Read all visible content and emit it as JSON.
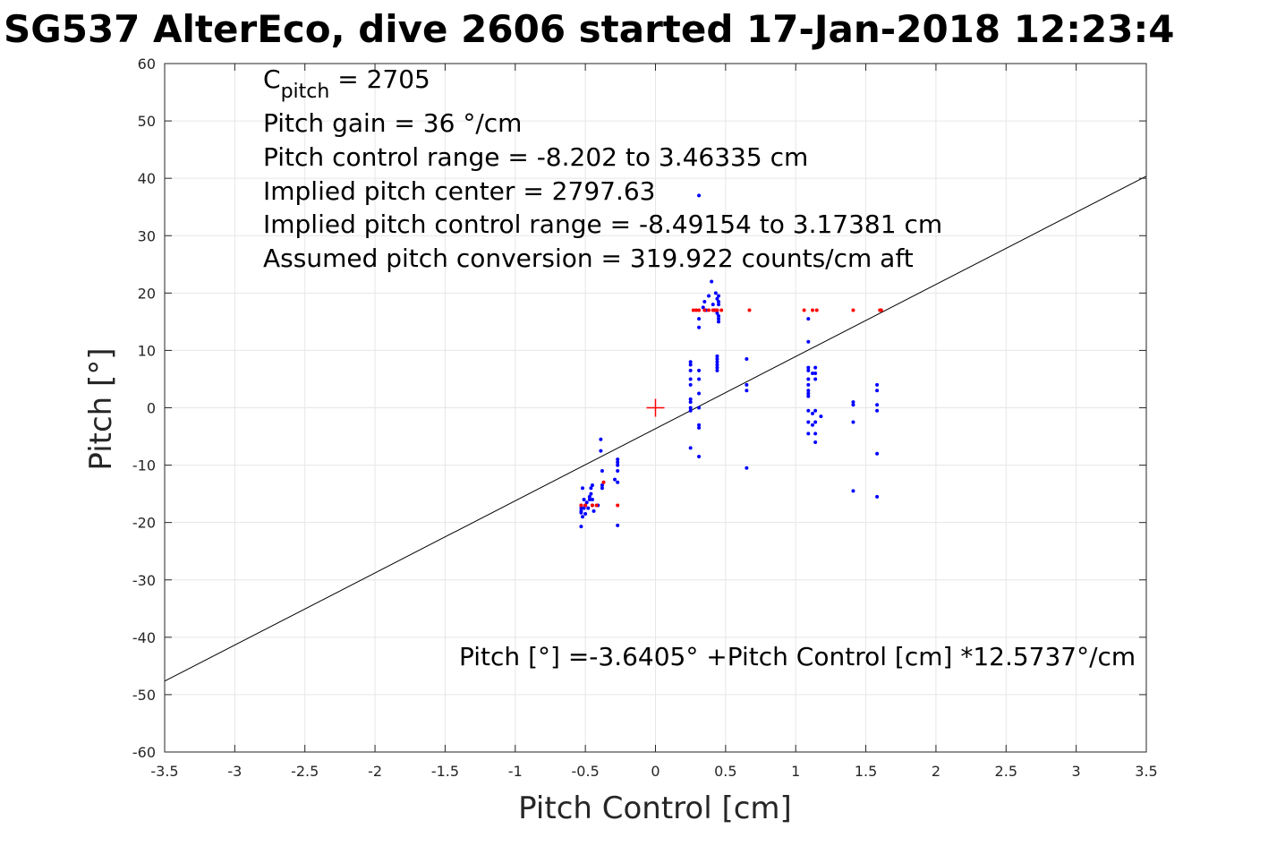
{
  "chart_data": {
    "type": "scatter",
    "title": "SG537 AlterEco, dive 2606 started 17-Jan-2018 12:23:4",
    "xlabel": "Pitch Control [cm]",
    "ylabel": "Pitch [°]",
    "xlim": [
      -3.5,
      3.5
    ],
    "ylim": [
      -60,
      60
    ],
    "xticks": [
      -3.5,
      -3,
      -2.5,
      -2,
      -1.5,
      -1,
      -0.5,
      0,
      0.5,
      1,
      1.5,
      2,
      2.5,
      3,
      3.5
    ],
    "xtick_labels": [
      "-3.5",
      "-3",
      "-2.5",
      "-2",
      "-1.5",
      "-1",
      "-0.5",
      "0",
      "0.5",
      "1",
      "1.5",
      "2",
      "2.5",
      "3",
      "3.5"
    ],
    "yticks": [
      -60,
      -50,
      -40,
      -30,
      -20,
      -10,
      0,
      10,
      20,
      30,
      40,
      50,
      60
    ],
    "ytick_labels": [
      "-60",
      "-50",
      "-40",
      "-30",
      "-20",
      "-10",
      "0",
      "10",
      "20",
      "30",
      "40",
      "50",
      "60"
    ],
    "grid": true,
    "colors": {
      "observed": "#0000ff",
      "flagged": "#ff0000",
      "fit": "#000000",
      "center_marker": "#ff0000",
      "grid": "#e6e6e6"
    },
    "annotations": {
      "c_pitch_base": "C",
      "c_pitch_sub": "pitch",
      "c_pitch_value": " = 2705",
      "line2": "Pitch gain = 36 °/cm",
      "line3": "Pitch control range = -8.202 to 3.46335 cm",
      "line4": "Implied pitch center = 2797.63",
      "line5": "Implied pitch control range = -8.49154 to 3.17381 cm",
      "line6": "Assumed pitch conversion = 319.922 counts/cm aft",
      "fit_equation": "Pitch [°] =-3.6405° +Pitch Control [cm] *12.5737°/cm"
    },
    "fit_line": {
      "intercept": -3.6405,
      "slope": 12.5737
    },
    "center_marker": {
      "x": 0,
      "y": 0
    },
    "series": [
      {
        "color": "#0000ff",
        "points": [
          [
            -0.53,
            -17
          ],
          [
            -0.53,
            -17.5
          ],
          [
            -0.53,
            -18
          ],
          [
            -0.53,
            -18.3
          ],
          [
            -0.52,
            -19
          ],
          [
            -0.53,
            -20.7
          ],
          [
            -0.52,
            -14
          ],
          [
            -0.51,
            -16
          ],
          [
            -0.51,
            -17.5
          ],
          [
            -0.5,
            -18.5
          ],
          [
            -0.5,
            -17
          ],
          [
            -0.49,
            -16.5
          ],
          [
            -0.48,
            -17.5
          ],
          [
            -0.47,
            -16
          ],
          [
            -0.47,
            -15.5
          ],
          [
            -0.46,
            -15
          ],
          [
            -0.46,
            -14
          ],
          [
            -0.45,
            -16
          ],
          [
            -0.45,
            -17
          ],
          [
            -0.44,
            -18
          ],
          [
            -0.45,
            -13.5
          ],
          [
            -0.41,
            -17
          ],
          [
            -0.39,
            -5.5
          ],
          [
            -0.39,
            -7.5
          ],
          [
            -0.38,
            -11
          ],
          [
            -0.38,
            -13.5
          ],
          [
            -0.38,
            -14
          ],
          [
            -0.29,
            -12.5
          ],
          [
            -0.27,
            -9
          ],
          [
            -0.27,
            -9.5
          ],
          [
            -0.27,
            -10
          ],
          [
            -0.27,
            -11
          ],
          [
            -0.27,
            -13
          ],
          [
            -0.27,
            -20.5
          ],
          [
            0.25,
            7.5
          ],
          [
            0.25,
            8
          ],
          [
            0.25,
            6.5
          ],
          [
            0.25,
            5
          ],
          [
            0.25,
            4
          ],
          [
            0.25,
            1
          ],
          [
            0.25,
            0
          ],
          [
            0.25,
            -0.5
          ],
          [
            0.25,
            -7
          ],
          [
            0.25,
            1.5
          ],
          [
            0.31,
            6.5
          ],
          [
            0.31,
            2.5
          ],
          [
            0.31,
            -3
          ],
          [
            0.31,
            -3.5
          ],
          [
            0.31,
            -8.5
          ],
          [
            0.31,
            5
          ],
          [
            0.31,
            0
          ],
          [
            0.31,
            14
          ],
          [
            0.31,
            15.5
          ],
          [
            0.31,
            37
          ],
          [
            0.34,
            17.5
          ],
          [
            0.35,
            18.5
          ],
          [
            0.36,
            17
          ],
          [
            0.38,
            19.5
          ],
          [
            0.4,
            22
          ],
          [
            0.41,
            18
          ],
          [
            0.42,
            17
          ],
          [
            0.43,
            20
          ],
          [
            0.44,
            16.5
          ],
          [
            0.44,
            19
          ],
          [
            0.45,
            18
          ],
          [
            0.45,
            16
          ],
          [
            0.45,
            15.5
          ],
          [
            0.45,
            15
          ],
          [
            0.45,
            18.5
          ],
          [
            0.45,
            19.5
          ],
          [
            0.44,
            9
          ],
          [
            0.44,
            8
          ],
          [
            0.44,
            7.5
          ],
          [
            0.44,
            7
          ],
          [
            0.44,
            6.5
          ],
          [
            0.44,
            8.5
          ],
          [
            0.65,
            8.5
          ],
          [
            0.65,
            4
          ],
          [
            0.65,
            3
          ],
          [
            0.65,
            -10.5
          ],
          [
            1.09,
            15.5
          ],
          [
            1.09,
            11.5
          ],
          [
            1.09,
            7
          ],
          [
            1.09,
            6.5
          ],
          [
            1.09,
            5
          ],
          [
            1.09,
            4
          ],
          [
            1.09,
            3
          ],
          [
            1.09,
            2.5
          ],
          [
            1.09,
            2
          ],
          [
            1.09,
            -0.5
          ],
          [
            1.09,
            -2.5
          ],
          [
            1.09,
            -4.5
          ],
          [
            1.12,
            6
          ],
          [
            1.12,
            -1
          ],
          [
            1.12,
            -3
          ],
          [
            1.14,
            7
          ],
          [
            1.14,
            6
          ],
          [
            1.14,
            5
          ],
          [
            1.14,
            -0.5
          ],
          [
            1.14,
            -2.5
          ],
          [
            1.14,
            -4.5
          ],
          [
            1.14,
            -6
          ],
          [
            1.18,
            -1.5
          ],
          [
            1.41,
            1
          ],
          [
            1.41,
            0.5
          ],
          [
            1.41,
            -2.5
          ],
          [
            1.41,
            -14.5
          ],
          [
            1.58,
            4
          ],
          [
            1.58,
            3
          ],
          [
            1.58,
            0.5
          ],
          [
            1.58,
            -0.5
          ],
          [
            1.58,
            -8
          ],
          [
            1.58,
            -15.5
          ]
        ]
      },
      {
        "color": "#ff0000",
        "points": [
          [
            -0.53,
            -17
          ],
          [
            -0.5,
            -17
          ],
          [
            -0.45,
            -17
          ],
          [
            -0.42,
            -17
          ],
          [
            -0.37,
            -13
          ],
          [
            -0.27,
            -17
          ],
          [
            0.27,
            17
          ],
          [
            0.29,
            17
          ],
          [
            0.31,
            17
          ],
          [
            0.35,
            17
          ],
          [
            0.38,
            17
          ],
          [
            0.41,
            17
          ],
          [
            0.43,
            17
          ],
          [
            0.44,
            17
          ],
          [
            0.47,
            17
          ],
          [
            0.67,
            17
          ],
          [
            1.06,
            17
          ],
          [
            1.12,
            17
          ],
          [
            1.15,
            17
          ],
          [
            1.41,
            17
          ],
          [
            1.6,
            17
          ],
          [
            1.61,
            17
          ]
        ]
      }
    ]
  }
}
